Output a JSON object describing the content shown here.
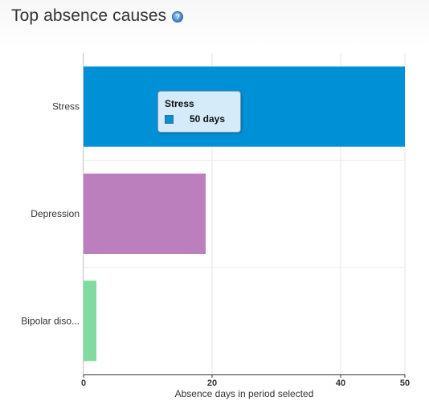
{
  "header": {
    "title": "Top absence causes",
    "help_icon": "question-mark-icon"
  },
  "chart_data": {
    "type": "bar",
    "orientation": "horizontal",
    "categories": [
      "Stress",
      "Depression",
      "Bipolar diso..."
    ],
    "values": [
      50,
      19,
      2
    ],
    "colors": [
      "#0090d5",
      "#bc7fbd",
      "#80dba0"
    ],
    "title": "Top absence causes",
    "xlabel": "Absence days in period selected",
    "ylabel": "",
    "xlim": [
      0,
      50
    ],
    "xticks": [
      0,
      20,
      40,
      50
    ],
    "grid": true,
    "legend": "none"
  },
  "tooltip": {
    "title": "Stress",
    "value": "50 days",
    "color": "#0090d5"
  }
}
